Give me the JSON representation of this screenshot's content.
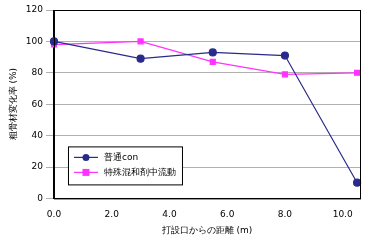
{
  "chart_data": {
    "type": "line",
    "x_label": "打設口からの距離 (m)",
    "y_label": "粗骨材変化率 (%)",
    "series": [
      {
        "name": "普通con",
        "color": "#2a2a8c",
        "marker": "circle",
        "x": [
          0.0,
          3.0,
          5.5,
          8.0,
          10.5
        ],
        "values": [
          100,
          89,
          93,
          91,
          10
        ]
      },
      {
        "name": "特殊混和剤中流動",
        "color": "#ff33ff",
        "marker": "square",
        "x": [
          0.0,
          3.0,
          5.5,
          8.0,
          10.5
        ],
        "values": [
          98,
          100,
          87,
          79,
          80
        ]
      }
    ],
    "xlim": [
      0,
      10.6
    ],
    "xticks": [
      {
        "value": 0,
        "label": "0.0"
      },
      {
        "value": 2,
        "label": "2.0"
      },
      {
        "value": 4,
        "label": "4.0"
      },
      {
        "value": 6,
        "label": "6.0"
      },
      {
        "value": 8,
        "label": "8.0"
      },
      {
        "value": 10,
        "label": "10.0"
      }
    ],
    "ylim": [
      0,
      120
    ],
    "yticks": [
      0,
      20,
      40,
      60,
      80,
      100,
      120
    ],
    "grid": true,
    "legend": "lower left"
  }
}
